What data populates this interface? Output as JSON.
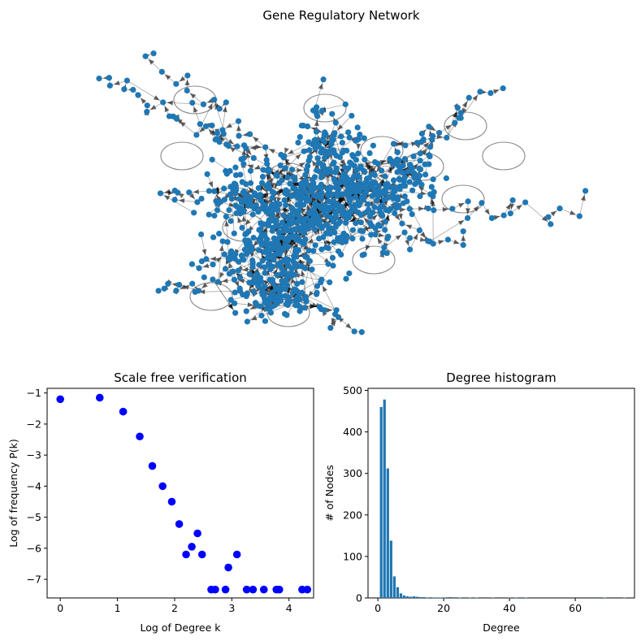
{
  "figure_title": "Gene Regulatory Network",
  "colors": {
    "node": "#1f77b4",
    "edge": "#000000",
    "scatter": "#0000ff",
    "hist": "#1f77b4"
  },
  "chart_data": [
    {
      "type": "network",
      "title": "Gene Regulatory Network",
      "node_color": "#1f77b4",
      "edge_style": "directed-arrows",
      "self_loops": true
    },
    {
      "type": "scatter",
      "title": "Scale free verification",
      "xlabel": "Log of Degree k",
      "ylabel": "Log of frequency P(k)",
      "xlim": [
        -0.23,
        4.43
      ],
      "ylim": [
        -7.6,
        -0.85
      ],
      "xticks": [
        0,
        1,
        2,
        3,
        4
      ],
      "yticks": [
        -7,
        -6,
        -5,
        -4,
        -3,
        -2,
        -1
      ],
      "xtick_labels": [
        "0",
        "1",
        "2",
        "3",
        "4"
      ],
      "ytick_labels": [
        "−7",
        "−6",
        "−5",
        "−4",
        "−3",
        "−2",
        "−1"
      ],
      "color": "#0000ff",
      "points": [
        [
          0.0,
          -1.2
        ],
        [
          0.69,
          -1.15
        ],
        [
          1.1,
          -1.6
        ],
        [
          1.39,
          -2.4
        ],
        [
          1.61,
          -3.35
        ],
        [
          1.79,
          -4.0
        ],
        [
          1.95,
          -4.5
        ],
        [
          2.08,
          -5.22
        ],
        [
          2.2,
          -6.2
        ],
        [
          2.3,
          -5.95
        ],
        [
          2.4,
          -5.52
        ],
        [
          2.48,
          -6.2
        ],
        [
          2.64,
          -7.33
        ],
        [
          2.71,
          -7.33
        ],
        [
          2.89,
          -7.33
        ],
        [
          2.94,
          -6.62
        ],
        [
          3.09,
          -6.2
        ],
        [
          3.26,
          -7.33
        ],
        [
          3.37,
          -7.33
        ],
        [
          3.56,
          -7.33
        ],
        [
          3.78,
          -7.33
        ],
        [
          3.83,
          -7.33
        ],
        [
          4.23,
          -7.33
        ],
        [
          4.32,
          -7.33
        ]
      ]
    },
    {
      "type": "bar",
      "title": "Degree histogram",
      "xlabel": "Degree",
      "ylabel": "# of Nodes",
      "xlim": [
        -3,
        78
      ],
      "ylim": [
        0,
        505
      ],
      "xticks": [
        0,
        20,
        40,
        60
      ],
      "yticks": [
        0,
        100,
        200,
        300,
        400,
        500
      ],
      "xtick_labels": [
        "0",
        "20",
        "40",
        "60"
      ],
      "ytick_labels": [
        "0",
        "100",
        "200",
        "300",
        "400",
        "500"
      ],
      "color": "#1f77b4",
      "x": [
        1,
        2,
        3,
        4,
        5,
        6,
        7,
        8,
        9,
        10,
        11,
        12,
        13,
        14,
        15,
        17,
        18,
        19,
        20,
        22,
        25,
        28,
        30,
        35,
        40,
        42,
        45,
        69,
        75
      ],
      "values": [
        460,
        478,
        312,
        138,
        52,
        26,
        11,
        6,
        4,
        3,
        4,
        3,
        2,
        2,
        1,
        1,
        1,
        1,
        1,
        2,
        1,
        1,
        1,
        1,
        1,
        1,
        1,
        1,
        1
      ]
    }
  ]
}
